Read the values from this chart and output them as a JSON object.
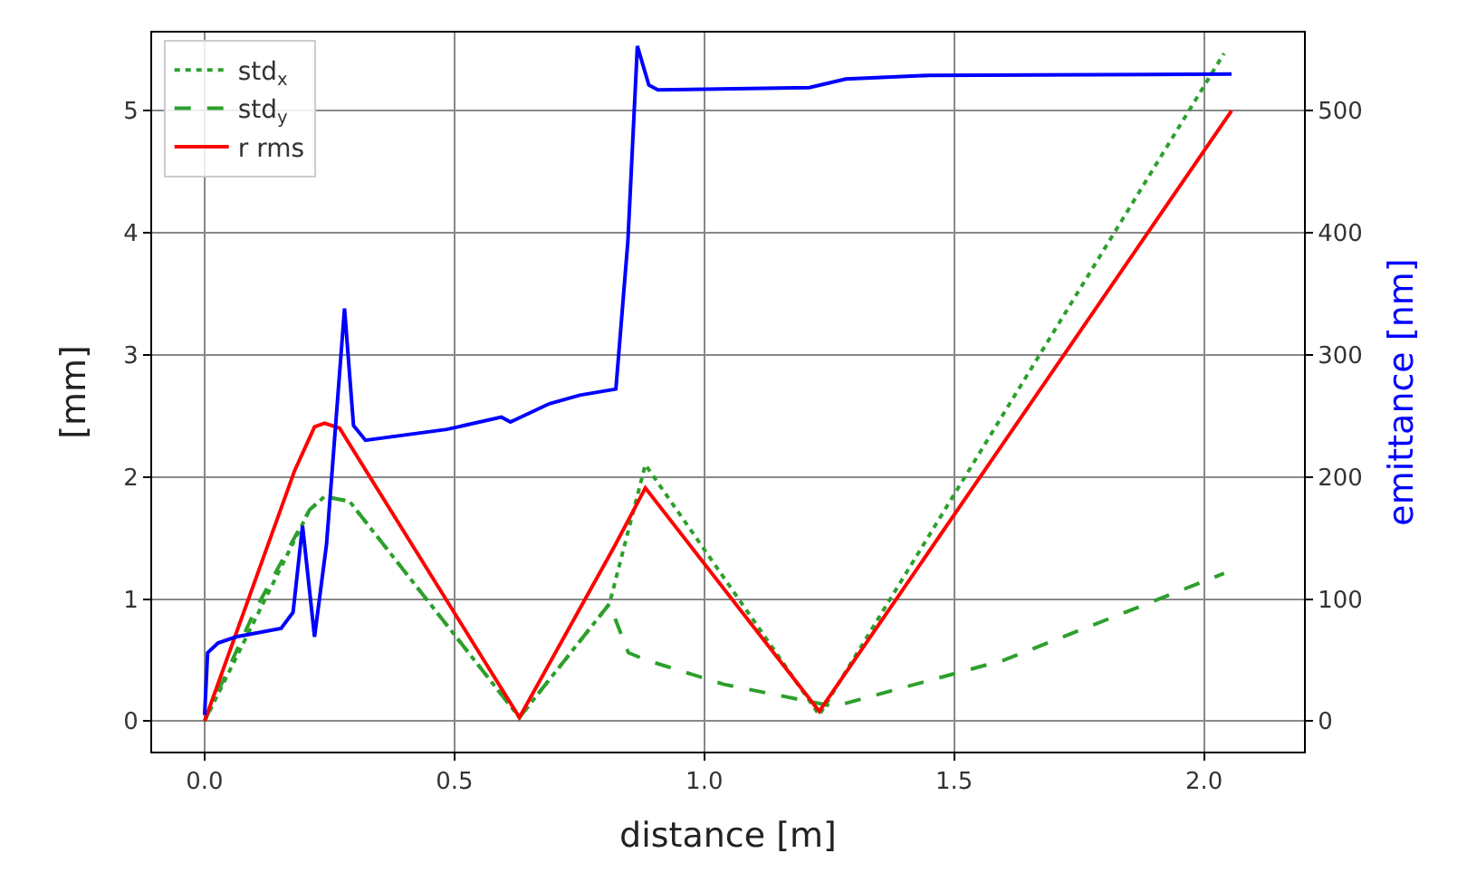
{
  "chart_data": {
    "type": "line",
    "xlabel": "distance [m]",
    "ylabel": "[mm]",
    "y2label": "emittance [nm]",
    "xlim": [
      -0.105,
      2.2
    ],
    "xticks": [
      {
        "value": 0,
        "label": "0.0"
      },
      {
        "value": 0.5,
        "label": "0.5"
      },
      {
        "value": 1,
        "label": "1.0"
      },
      {
        "value": 1.5,
        "label": "1.5"
      },
      {
        "value": 2,
        "label": "2.0"
      }
    ],
    "ylim": [
      -0.25,
      5.64
    ],
    "yticks": [
      0,
      1,
      2,
      3,
      4,
      5
    ],
    "y2lim": [
      -25,
      564
    ],
    "y2ticks": [
      0,
      100,
      200,
      300,
      400,
      500
    ],
    "grid": true,
    "legend": "top left",
    "series": [
      {
        "name": "std$_{x}$",
        "color": "#2ca02c",
        "line_style": "dotted",
        "x": [
          0,
          0.21,
          0.24,
          0.29,
          0.63,
          0.81,
          0.882,
          1.23,
          2.04
        ],
        "values": [
          0,
          1.73,
          1.84,
          1.8,
          0.03,
          0.96,
          2.1,
          0.05,
          5.47
        ]
      },
      {
        "name": "std$_{y}$",
        "color": "#2ca02c",
        "line_style": "dashed",
        "x": [
          0,
          0.1,
          0.21,
          0.24,
          0.29,
          0.63,
          0.81,
          0.848,
          0.884,
          1.04,
          1.26,
          1.6,
          2.04
        ],
        "values": [
          0,
          0.9,
          1.73,
          1.84,
          1.8,
          0.03,
          0.96,
          0.56,
          0.5,
          0.3,
          0.12,
          0.5,
          1.21
        ]
      },
      {
        "name": "r rms",
        "color": "#ff0000",
        "line_style": "solid",
        "x": [
          0,
          0.18,
          0.22,
          0.24,
          0.27,
          0.63,
          0.82,
          0.882,
          1.23,
          2.055
        ],
        "values": [
          0,
          2.05,
          2.41,
          2.44,
          2.4,
          0.03,
          1.43,
          1.91,
          0.08,
          5.0
        ]
      },
      {
        "color": "#0000ff",
        "line_style": "solid",
        "axis": "y2",
        "x": [
          0,
          0.006,
          0.027,
          0.063,
          0.153,
          0.177,
          0.196,
          0.22,
          0.244,
          0.28,
          0.298,
          0.322,
          0.485,
          0.594,
          0.612,
          0.69,
          0.751,
          0.823,
          0.847,
          0.866,
          0.889,
          0.907,
          1.21,
          1.283,
          1.45,
          2.055
        ],
        "values": [
          5,
          56,
          64,
          69,
          76,
          89,
          160,
          69,
          145,
          338,
          242,
          230,
          239,
          249,
          245,
          260,
          267,
          272,
          393,
          553,
          521,
          517,
          519,
          526,
          529,
          530
        ]
      }
    ]
  }
}
